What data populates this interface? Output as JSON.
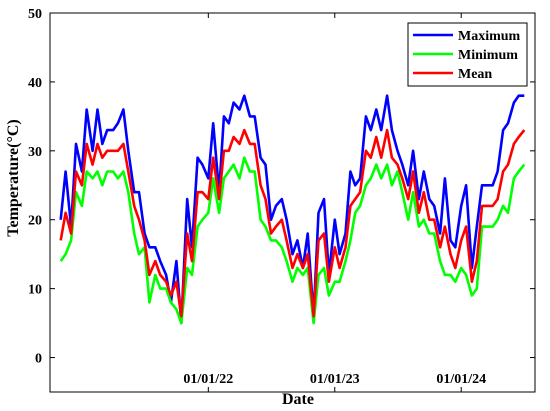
{
  "chart_data": {
    "type": "line",
    "xlabel": "Date",
    "ylabel": "Temperature(°C)",
    "ylim": [
      -5,
      50
    ],
    "yticks": [
      0,
      10,
      20,
      30,
      40,
      50
    ],
    "xticks": [
      {
        "value": "2022-01-01",
        "label": "01/01/22"
      },
      {
        "value": "2023-01-01",
        "label": "01/01/23"
      },
      {
        "value": "2024-01-01",
        "label": "01/01/24"
      }
    ],
    "xlim": [
      "2020-10-01",
      "2024-08-01"
    ],
    "grid": false,
    "legend_position": "top-right",
    "x": [
      "2020-11-01",
      "2020-11-15",
      "2020-12-01",
      "2020-12-15",
      "2021-01-01",
      "2021-01-15",
      "2021-02-01",
      "2021-02-15",
      "2021-03-01",
      "2021-03-15",
      "2021-04-01",
      "2021-04-15",
      "2021-05-01",
      "2021-05-15",
      "2021-06-01",
      "2021-06-15",
      "2021-07-01",
      "2021-07-15",
      "2021-08-01",
      "2021-08-15",
      "2021-09-01",
      "2021-09-15",
      "2021-10-01",
      "2021-10-15",
      "2021-11-01",
      "2021-11-15",
      "2021-12-01",
      "2021-12-15",
      "2022-01-01",
      "2022-01-15",
      "2022-02-01",
      "2022-02-15",
      "2022-03-01",
      "2022-03-15",
      "2022-04-01",
      "2022-04-15",
      "2022-05-01",
      "2022-05-15",
      "2022-06-01",
      "2022-06-15",
      "2022-07-01",
      "2022-07-15",
      "2022-08-01",
      "2022-08-15",
      "2022-09-01",
      "2022-09-15",
      "2022-10-01",
      "2022-10-15",
      "2022-11-01",
      "2022-11-15",
      "2022-12-01",
      "2022-12-15",
      "2023-01-01",
      "2023-01-15",
      "2023-02-01",
      "2023-02-15",
      "2023-03-01",
      "2023-03-15",
      "2023-04-01",
      "2023-04-15",
      "2023-05-01",
      "2023-05-15",
      "2023-06-01",
      "2023-06-15",
      "2023-07-01",
      "2023-07-15",
      "2023-08-01",
      "2023-08-15",
      "2023-09-01",
      "2023-09-15",
      "2023-10-01",
      "2023-10-15",
      "2023-11-01",
      "2023-11-15",
      "2023-12-01",
      "2023-12-15",
      "2024-01-01",
      "2024-01-15",
      "2024-02-01",
      "2024-02-15",
      "2024-03-01",
      "2024-03-15",
      "2024-04-01",
      "2024-04-15",
      "2024-05-01",
      "2024-05-15",
      "2024-06-01",
      "2024-06-15",
      "2024-07-01"
    ],
    "series": [
      {
        "name": "Maximum",
        "color": "#0000ff",
        "values": [
          20,
          27,
          19,
          31,
          27,
          36,
          30,
          36,
          31,
          33,
          33,
          34,
          36,
          30,
          24,
          24,
          18,
          16,
          16,
          14,
          12,
          8,
          14,
          5,
          23,
          16,
          29,
          28,
          26,
          34,
          24,
          35,
          34,
          37,
          36,
          38,
          35,
          35,
          29,
          28,
          20,
          22,
          23,
          20,
          15,
          17,
          13,
          18,
          6,
          21,
          23,
          12,
          20,
          15,
          18,
          27,
          25,
          26,
          35,
          33,
          36,
          33,
          38,
          33,
          30,
          28,
          25,
          30,
          23,
          27,
          23,
          22,
          18,
          26,
          17,
          16,
          22,
          25,
          13,
          19,
          25,
          25,
          25,
          27,
          33,
          34,
          37,
          38,
          38
        ]
      },
      {
        "name": "Minimum",
        "color": "#00ff00",
        "values": [
          14,
          15,
          17,
          24,
          22,
          27,
          26,
          27,
          25,
          27,
          27,
          26,
          27,
          24,
          18,
          15,
          16,
          8,
          12,
          10,
          10,
          8,
          7,
          5,
          13,
          12,
          19,
          20,
          21,
          26,
          21,
          26,
          27,
          28,
          26,
          29,
          27,
          27,
          20,
          19,
          17,
          17,
          16,
          14,
          11,
          13,
          12,
          13,
          5,
          12,
          13,
          9,
          11,
          11,
          14,
          17,
          21,
          22,
          25,
          26,
          28,
          26,
          28,
          25,
          27,
          24,
          20,
          24,
          19,
          20,
          18,
          18,
          14,
          12,
          12,
          11,
          13,
          12,
          9,
          10,
          19,
          19,
          19,
          20,
          22,
          21,
          26,
          27,
          28
        ]
      },
      {
        "name": "Mean",
        "color": "#ff0000",
        "values": [
          17,
          21,
          18,
          27,
          25,
          31,
          28,
          31,
          29,
          30,
          30,
          30,
          31,
          27,
          22,
          20,
          17,
          12,
          14,
          12,
          11,
          9,
          11,
          6,
          18,
          14,
          24,
          24,
          23,
          29,
          23,
          30,
          30,
          32,
          31,
          33,
          31,
          31,
          25,
          23,
          18,
          19,
          20,
          17,
          13,
          15,
          13,
          15,
          6,
          17,
          18,
          11,
          16,
          13,
          16,
          22,
          23,
          24,
          30,
          29,
          32,
          29,
          33,
          29,
          28,
          26,
          23,
          27,
          21,
          24,
          20,
          20,
          16,
          19,
          15,
          13,
          17,
          19,
          11,
          14,
          22,
          22,
          22,
          23,
          27,
          28,
          31,
          32,
          33
        ]
      }
    ]
  }
}
